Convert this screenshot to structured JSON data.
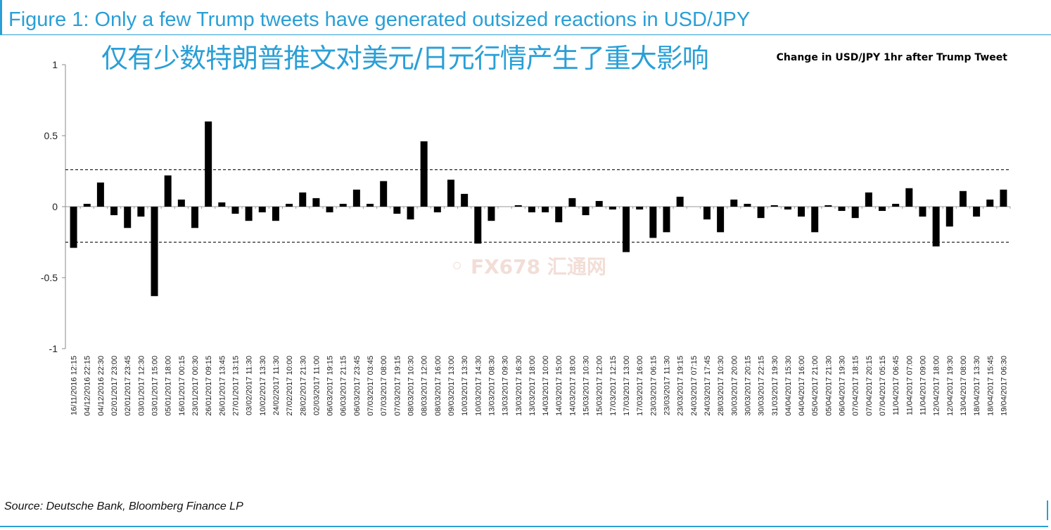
{
  "figure": {
    "title": "Figure 1: Only a few Trump tweets have generated outsized reactions in USD/JPY",
    "subtitle_cn": "仅有少数特朗普推文对美元/日元行情产生了重大影响",
    "source": "Source: Deutsche Bank, Bloomberg Finance LP",
    "accent_color": "#2a9fd6"
  },
  "watermark": {
    "icon": "swirl-logo-icon",
    "text": "FX678 汇通网"
  },
  "chart_data": {
    "type": "bar",
    "title": "Change in USD/JPY 1hr after Trump Tweet",
    "xlabel": "",
    "ylabel": "",
    "ylim": [
      -1,
      1
    ],
    "yticks": [
      1,
      0.5,
      0,
      -0.5,
      -1
    ],
    "ytick_labels": [
      "1",
      "0.5",
      "0",
      "-0.5",
      "-1"
    ],
    "reference_lines": [
      0.26,
      -0.25
    ],
    "bar_color": "#000000",
    "grid": false,
    "categories": [
      "16/11/2016 12:15",
      "04/12/2016 22:15",
      "04/12/2016 22:30",
      "02/01/2017 23:00",
      "02/01/2017 23:45",
      "03/01/2017 12:30",
      "03/01/2017 15:00",
      "05/01/2017 18:00",
      "16/01/2017 00:15",
      "23/01/2017 00:30",
      "26/01/2017 09:15",
      "26/01/2017 13:45",
      "27/01/2017 13:15",
      "03/02/2017 11:30",
      "10/02/2017 13:30",
      "24/02/2017 11:30",
      "27/02/2017 10:00",
      "28/02/2017 21:30",
      "02/03/2017 11:00",
      "06/03/2017 19:15",
      "06/03/2017 21:15",
      "06/03/2017 23:45",
      "07/03/2017 03:45",
      "07/03/2017 08:00",
      "07/03/2017 19:15",
      "08/03/2017 10:30",
      "08/03/2017 12:00",
      "08/03/2017 16:00",
      "09/03/2017 13:00",
      "10/03/2017 13:30",
      "10/03/2017 14:30",
      "13/03/2017 08:30",
      "13/03/2017 09:30",
      "13/03/2017 16:30",
      "13/03/2017 18:00",
      "14/03/2017 10:00",
      "14/03/2017 15:00",
      "14/03/2017 18:00",
      "15/03/2017 10:30",
      "15/03/2017 12:00",
      "17/03/2017 12:15",
      "17/03/2017 13:00",
      "17/03/2017 16:00",
      "23/03/2017 06:15",
      "23/03/2017 11:30",
      "23/03/2017 19:15",
      "24/03/2017 07:15",
      "24/03/2017 17:45",
      "28/03/2017 10:30",
      "30/03/2017 20:00",
      "30/03/2017 20:15",
      "30/03/2017 22:15",
      "31/03/2017 19:30",
      "04/04/2017 15:30",
      "04/04/2017 16:00",
      "05/04/2017 21:00",
      "05/04/2017 21:30",
      "06/04/2017 19:30",
      "07/04/2017 18:15",
      "07/04/2017 20:15",
      "07/04/2017 05:15",
      "11/04/2017 06:45",
      "11/04/2017 07:00",
      "11/04/2017 09:00",
      "12/04/2017 18:00",
      "12/04/2017 19:30",
      "13/04/2017 08:00",
      "18/04/2017 13:30",
      "18/04/2017 15:45",
      "19/04/2017 06:30"
    ],
    "values": [
      -0.29,
      0.02,
      0.17,
      -0.06,
      -0.15,
      -0.07,
      -0.63,
      0.22,
      0.05,
      -0.15,
      0.6,
      0.03,
      -0.05,
      -0.1,
      -0.04,
      -0.1,
      0.02,
      0.1,
      0.06,
      -0.04,
      0.02,
      0.12,
      0.02,
      0.18,
      -0.05,
      -0.09,
      0.46,
      -0.04,
      0.19,
      0.09,
      -0.26,
      -0.1,
      0.0,
      0.01,
      -0.04,
      -0.04,
      -0.11,
      0.06,
      -0.06,
      0.04,
      -0.02,
      -0.32,
      -0.02,
      -0.22,
      -0.18,
      0.07,
      0.0,
      -0.09,
      -0.18,
      0.05,
      0.02,
      -0.08,
      0.01,
      -0.02,
      -0.07,
      -0.18,
      0.01,
      -0.03,
      -0.08,
      0.1,
      -0.03,
      0.02,
      0.13,
      -0.07,
      -0.28,
      -0.14,
      0.11,
      -0.07,
      0.05,
      0.12
    ]
  }
}
